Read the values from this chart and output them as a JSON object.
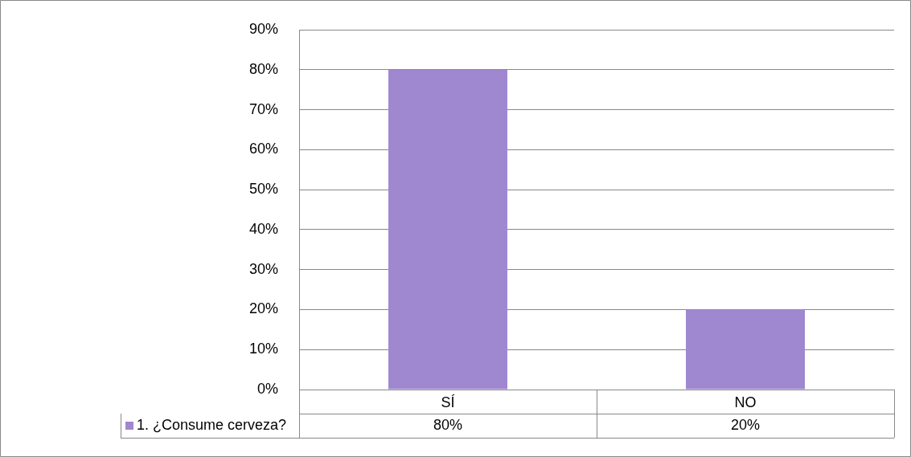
{
  "chart_data": {
    "type": "bar",
    "categories": [
      "SÍ",
      "NO"
    ],
    "series": [
      {
        "name": "1. ¿Consume cerveza?",
        "color": "#a088d0",
        "values": [
          80,
          20
        ]
      }
    ],
    "ylim": [
      0,
      90
    ],
    "yticks": [
      {
        "value": 0,
        "label": "0%"
      },
      {
        "value": 10,
        "label": "10%"
      },
      {
        "value": 20,
        "label": "20%"
      },
      {
        "value": 30,
        "label": "30%"
      },
      {
        "value": 40,
        "label": "40%"
      },
      {
        "value": 50,
        "label": "50%"
      },
      {
        "value": 60,
        "label": "60%"
      },
      {
        "value": 70,
        "label": "70%"
      },
      {
        "value": 80,
        "label": "80%"
      },
      {
        "value": 90,
        "label": "90%"
      }
    ],
    "grid": "y",
    "legend": "bottom",
    "value_labels": [
      "80%",
      "20%"
    ]
  }
}
